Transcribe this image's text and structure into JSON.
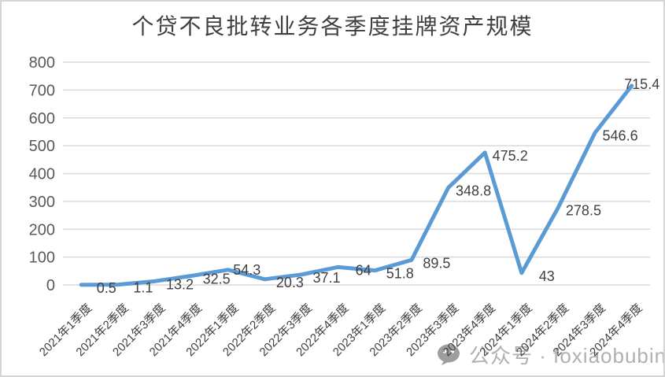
{
  "chart_data": {
    "type": "line",
    "title": "个贷不良批转业务各季度挂牌资产规模",
    "categories": [
      "2021年1季度",
      "2021年2季度",
      "2021年3季度",
      "2021年4季度",
      "2022年1季度",
      "2022年2季度",
      "2022年3季度",
      "2022年4季度",
      "2023年1季度",
      "2023年2季度",
      "2023年3季度",
      "2023年4季度",
      "2024年1季度",
      "2024年2季度",
      "2024年3季度",
      "2024年4季度"
    ],
    "values": [
      0.5,
      1.1,
      13.2,
      32.5,
      54.3,
      20.3,
      37.1,
      64,
      51.8,
      89.5,
      348.8,
      475.2,
      43,
      278.5,
      546.6,
      715.4
    ],
    "yticks": [
      0,
      100,
      200,
      300,
      400,
      500,
      600,
      700,
      800
    ],
    "ylim": [
      0,
      800
    ],
    "xlabel": "",
    "ylabel": "",
    "grid": "horizontal",
    "legend": "none",
    "data_labels": true,
    "colors": {
      "line": "#5B9BD5",
      "gridline": "#D9D9D9",
      "axis_text": "#595959",
      "data_label_text": "#404040",
      "title_text": "#3F3F3F",
      "watermark": "#B0B0B0"
    }
  },
  "watermark": {
    "icon": "wechat-icon",
    "text": "公众号 · foxiaobubin"
  }
}
